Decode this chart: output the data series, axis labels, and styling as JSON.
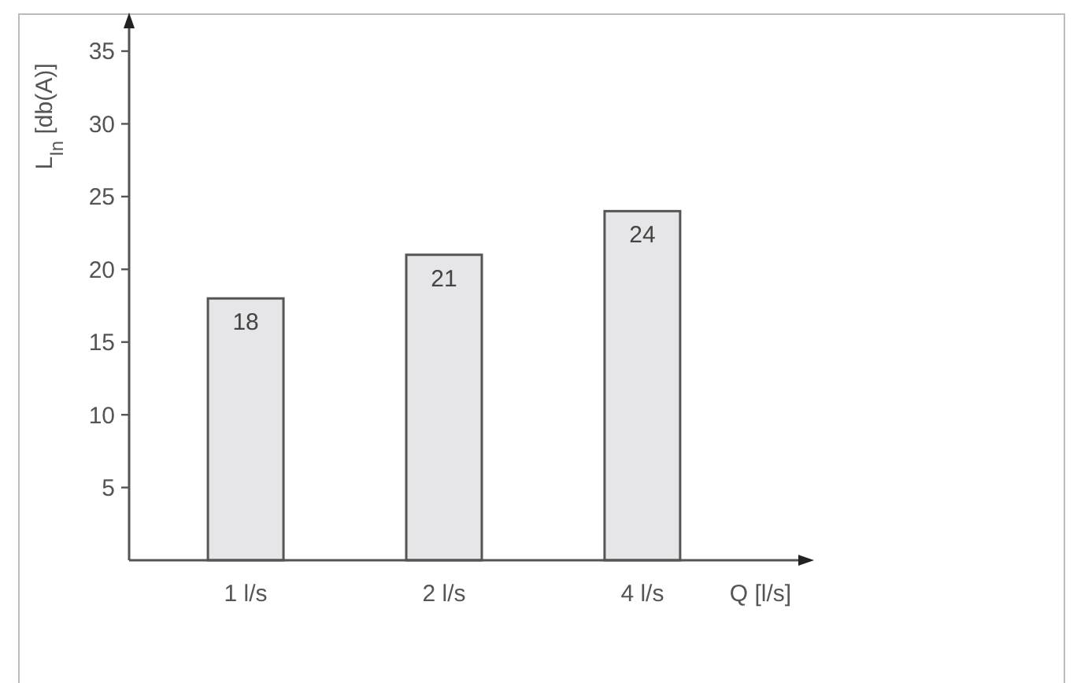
{
  "chart_data": {
    "type": "bar",
    "ylabel": "L$_{In}$ [db(A)]",
    "xlabel": "Q [l/s]",
    "categories": [
      "1 l/s",
      "2 l/s",
      "4 l/s"
    ],
    "values": [
      18,
      21,
      24
    ],
    "color": "#e6e6e8",
    "ylim": [
      0,
      37
    ],
    "yticks": [
      5,
      10,
      15,
      20,
      25,
      30,
      35
    ],
    "data_labels": true,
    "grid": false
  }
}
